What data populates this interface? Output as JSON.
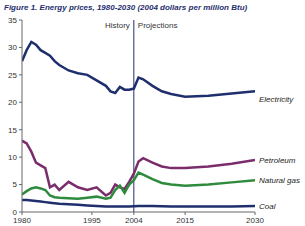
{
  "chart_data": {
    "type": "line",
    "title": "Figure 1. Energy prices, 1980-2030 (2004 dollars per million Btu)",
    "annotations": [
      {
        "text": "History"
      },
      {
        "text": "Projections"
      }
    ],
    "divider": 2004,
    "x": [
      1980,
      1981,
      1982,
      1983,
      1984,
      1985,
      1986,
      1987,
      1988,
      1990,
      1992,
      1994,
      1996,
      1998,
      1999,
      2000,
      2001,
      2002,
      2003,
      2004,
      2005,
      2006,
      2008,
      2010,
      2012,
      2015,
      2020,
      2025,
      2030
    ],
    "series": [
      {
        "name": "Electricity",
        "color": "#1f2f6e",
        "values": [
          27.5,
          29.5,
          31,
          30.5,
          29.5,
          29,
          28.5,
          27.5,
          26.8,
          25.8,
          25.3,
          25,
          24,
          23,
          22,
          21.7,
          22.8,
          22.3,
          22.3,
          22.5,
          24.5,
          24.2,
          23,
          22,
          21.5,
          21,
          21.2,
          21.6,
          22
        ]
      },
      {
        "name": "Petroleum",
        "color": "#7b2d6b",
        "values": [
          13,
          12.5,
          11,
          9,
          8.5,
          8,
          4.5,
          5,
          4,
          5.5,
          4.5,
          4,
          4.5,
          3,
          3.5,
          5,
          4.5,
          4.2,
          5.5,
          7,
          9.2,
          9.8,
          9,
          8.3,
          8,
          8,
          8.3,
          8.8,
          9.5
        ]
      },
      {
        "name": "Natural gas",
        "color": "#2e8b3e",
        "values": [
          3.2,
          3.8,
          4.3,
          4.5,
          4.3,
          4,
          3,
          2.7,
          2.6,
          2.5,
          2.4,
          2.6,
          2.8,
          2.4,
          2.6,
          4,
          4.8,
          3.5,
          5,
          5.8,
          7.2,
          6.8,
          6,
          5.3,
          5,
          4.8,
          5,
          5.4,
          5.8
        ]
      },
      {
        "name": "Coal",
        "color": "#1f2f6e",
        "values": [
          2.2,
          2.2,
          2.1,
          2,
          1.9,
          1.8,
          1.7,
          1.6,
          1.5,
          1.4,
          1.3,
          1.2,
          1.1,
          1,
          1,
          1,
          1,
          1,
          1,
          1.05,
          1.1,
          1.1,
          1.1,
          1.05,
          1,
          1,
          1,
          1,
          1.1
        ]
      }
    ],
    "xlim": [
      1980,
      2030
    ],
    "xticks": [
      1980,
      1995,
      2004,
      2015,
      2030
    ],
    "ylim": [
      0,
      35
    ],
    "yticks": [
      0,
      5,
      10,
      15,
      20,
      25,
      30,
      35
    ],
    "grid": false
  }
}
